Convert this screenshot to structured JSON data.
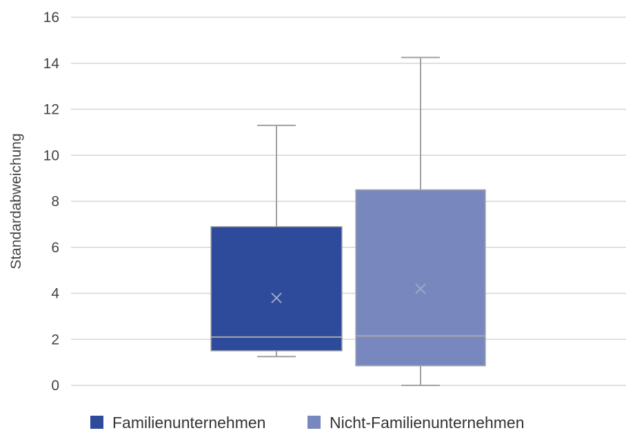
{
  "chart_data": {
    "type": "boxplot",
    "title": "",
    "xlabel": "",
    "ylabel": "Standardabweichung",
    "ylim": [
      0,
      16
    ],
    "yticks": [
      0,
      2,
      4,
      6,
      8,
      10,
      12,
      14,
      16
    ],
    "grid": true,
    "legend_position": "bottom",
    "series": [
      {
        "name": "Familienunternehmen",
        "color": "#2e4b9b",
        "min": 1.25,
        "q1": 1.5,
        "median": 2.1,
        "q3": 6.9,
        "max": 11.3,
        "mean": 3.8
      },
      {
        "name": "Nicht-Familienunternehmen",
        "color": "#7888bf",
        "min": 0.0,
        "q1": 0.85,
        "median": 2.15,
        "q3": 8.5,
        "max": 14.25,
        "mean": 4.2
      }
    ]
  }
}
